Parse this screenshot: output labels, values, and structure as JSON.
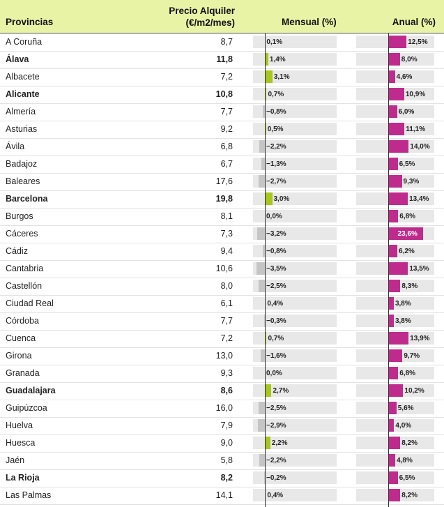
{
  "header": {
    "provincias": "Provincias",
    "precio_line1": "Precio Alquiler",
    "precio_line2": "(€/m2/mes)",
    "mensual": "Mensual (%)",
    "anual": "Anual (%)"
  },
  "colors": {
    "header_bg": "#e9f3a6",
    "mensual_positive": "#a8c61c",
    "mensual_negative": "#c5c5c5",
    "anual_bar": "#bf2b8d",
    "track": "#e8e8e8"
  },
  "chart_data": {
    "type": "table",
    "columns": [
      "Provincias",
      "Precio Alquiler (€/m2/mes)",
      "Mensual (%)",
      "Anual (%)"
    ],
    "rows": [
      {
        "provincia": "A Coruña",
        "precio": "8,7",
        "mensual": 0.1,
        "mensual_label": "0,1%",
        "anual": 12.5,
        "anual_label": "12,5%",
        "bold": false
      },
      {
        "provincia": "Álava",
        "precio": "11,8",
        "mensual": 1.4,
        "mensual_label": "1,4%",
        "anual": 8.0,
        "anual_label": "8,0%",
        "bold": true
      },
      {
        "provincia": "Albacete",
        "precio": "7,2",
        "mensual": 3.1,
        "mensual_label": "3,1%",
        "anual": 4.6,
        "anual_label": "4,6%",
        "bold": false
      },
      {
        "provincia": "Alicante",
        "precio": "10,8",
        "mensual": 0.7,
        "mensual_label": "0,7%",
        "anual": 10.9,
        "anual_label": "10,9%",
        "bold": true
      },
      {
        "provincia": "Almería",
        "precio": "7,7",
        "mensual": -0.8,
        "mensual_label": "−0,8%",
        "anual": 6.0,
        "anual_label": "6,0%",
        "bold": false
      },
      {
        "provincia": "Asturias",
        "precio": "9,2",
        "mensual": 0.5,
        "mensual_label": "0,5%",
        "anual": 11.1,
        "anual_label": "11,1%",
        "bold": false
      },
      {
        "provincia": "Ávila",
        "precio": "6,8",
        "mensual": -2.2,
        "mensual_label": "−2,2%",
        "anual": 14.0,
        "anual_label": "14,0%",
        "bold": false
      },
      {
        "provincia": "Badajoz",
        "precio": "6,7",
        "mensual": -1.3,
        "mensual_label": "−1,3%",
        "anual": 6.5,
        "anual_label": "6,5%",
        "bold": false
      },
      {
        "provincia": "Baleares",
        "precio": "17,6",
        "mensual": -2.7,
        "mensual_label": "−2,7%",
        "anual": 9.3,
        "anual_label": "9,3%",
        "bold": false
      },
      {
        "provincia": "Barcelona",
        "precio": "19,8",
        "mensual": 3.0,
        "mensual_label": "3,0%",
        "anual": 13.4,
        "anual_label": "13,4%",
        "bold": true
      },
      {
        "provincia": "Burgos",
        "precio": "8,1",
        "mensual": 0.0,
        "mensual_label": "0,0%",
        "anual": 6.8,
        "anual_label": "6,8%",
        "bold": false
      },
      {
        "provincia": "Cáceres",
        "precio": "7,3",
        "mensual": -3.2,
        "mensual_label": "−3,2%",
        "anual": 23.6,
        "anual_label": "23,6%",
        "bold": false
      },
      {
        "provincia": "Cádiz",
        "precio": "9,4",
        "mensual": -0.8,
        "mensual_label": "−0,8%",
        "anual": 6.2,
        "anual_label": "6,2%",
        "bold": false
      },
      {
        "provincia": "Cantabria",
        "precio": "10,6",
        "mensual": -3.5,
        "mensual_label": "−3,5%",
        "anual": 13.5,
        "anual_label": "13,5%",
        "bold": false
      },
      {
        "provincia": "Castellón",
        "precio": "8,0",
        "mensual": -2.5,
        "mensual_label": "−2,5%",
        "anual": 8.3,
        "anual_label": "8,3%",
        "bold": false
      },
      {
        "provincia": "Ciudad Real",
        "precio": "6,1",
        "mensual": 0.4,
        "mensual_label": "0,4%",
        "anual": 3.8,
        "anual_label": "3,8%",
        "bold": false
      },
      {
        "provincia": "Córdoba",
        "precio": "7,7",
        "mensual": -0.3,
        "mensual_label": "−0,3%",
        "anual": 3.8,
        "anual_label": "3,8%",
        "bold": false
      },
      {
        "provincia": "Cuenca",
        "precio": "7,2",
        "mensual": 0.7,
        "mensual_label": "0,7%",
        "anual": 13.9,
        "anual_label": "13,9%",
        "bold": false
      },
      {
        "provincia": "Girona",
        "precio": "13,0",
        "mensual": -1.6,
        "mensual_label": "−1,6%",
        "anual": 9.7,
        "anual_label": "9,7%",
        "bold": false
      },
      {
        "provincia": "Granada",
        "precio": "9,3",
        "mensual": 0.0,
        "mensual_label": "0,0%",
        "anual": 6.8,
        "anual_label": "6,8%",
        "bold": false
      },
      {
        "provincia": "Guadalajara",
        "precio": "8,6",
        "mensual": 2.7,
        "mensual_label": "2,7%",
        "anual": 10.2,
        "anual_label": "10,2%",
        "bold": true
      },
      {
        "provincia": "Guipúzcoa",
        "precio": "16,0",
        "mensual": -2.5,
        "mensual_label": "−2,5%",
        "anual": 5.6,
        "anual_label": "5,6%",
        "bold": false
      },
      {
        "provincia": "Huelva",
        "precio": "7,9",
        "mensual": -2.9,
        "mensual_label": "−2,9%",
        "anual": 4.0,
        "anual_label": "4,0%",
        "bold": false
      },
      {
        "provincia": "Huesca",
        "precio": "9,0",
        "mensual": 2.2,
        "mensual_label": "2,2%",
        "anual": 8.2,
        "anual_label": "8,2%",
        "bold": false
      },
      {
        "provincia": "Jaén",
        "precio": "5,8",
        "mensual": -2.2,
        "mensual_label": "−2,2%",
        "anual": 4.8,
        "anual_label": "4,8%",
        "bold": false
      },
      {
        "provincia": "La Rioja",
        "precio": "8,2",
        "mensual": -0.2,
        "mensual_label": "−0,2%",
        "anual": 6.5,
        "anual_label": "6,5%",
        "bold": true
      },
      {
        "provincia": "Las Palmas",
        "precio": "14,1",
        "mensual": 0.4,
        "mensual_label": "0,4%",
        "anual": 8.2,
        "anual_label": "8,2%",
        "bold": false
      }
    ]
  }
}
